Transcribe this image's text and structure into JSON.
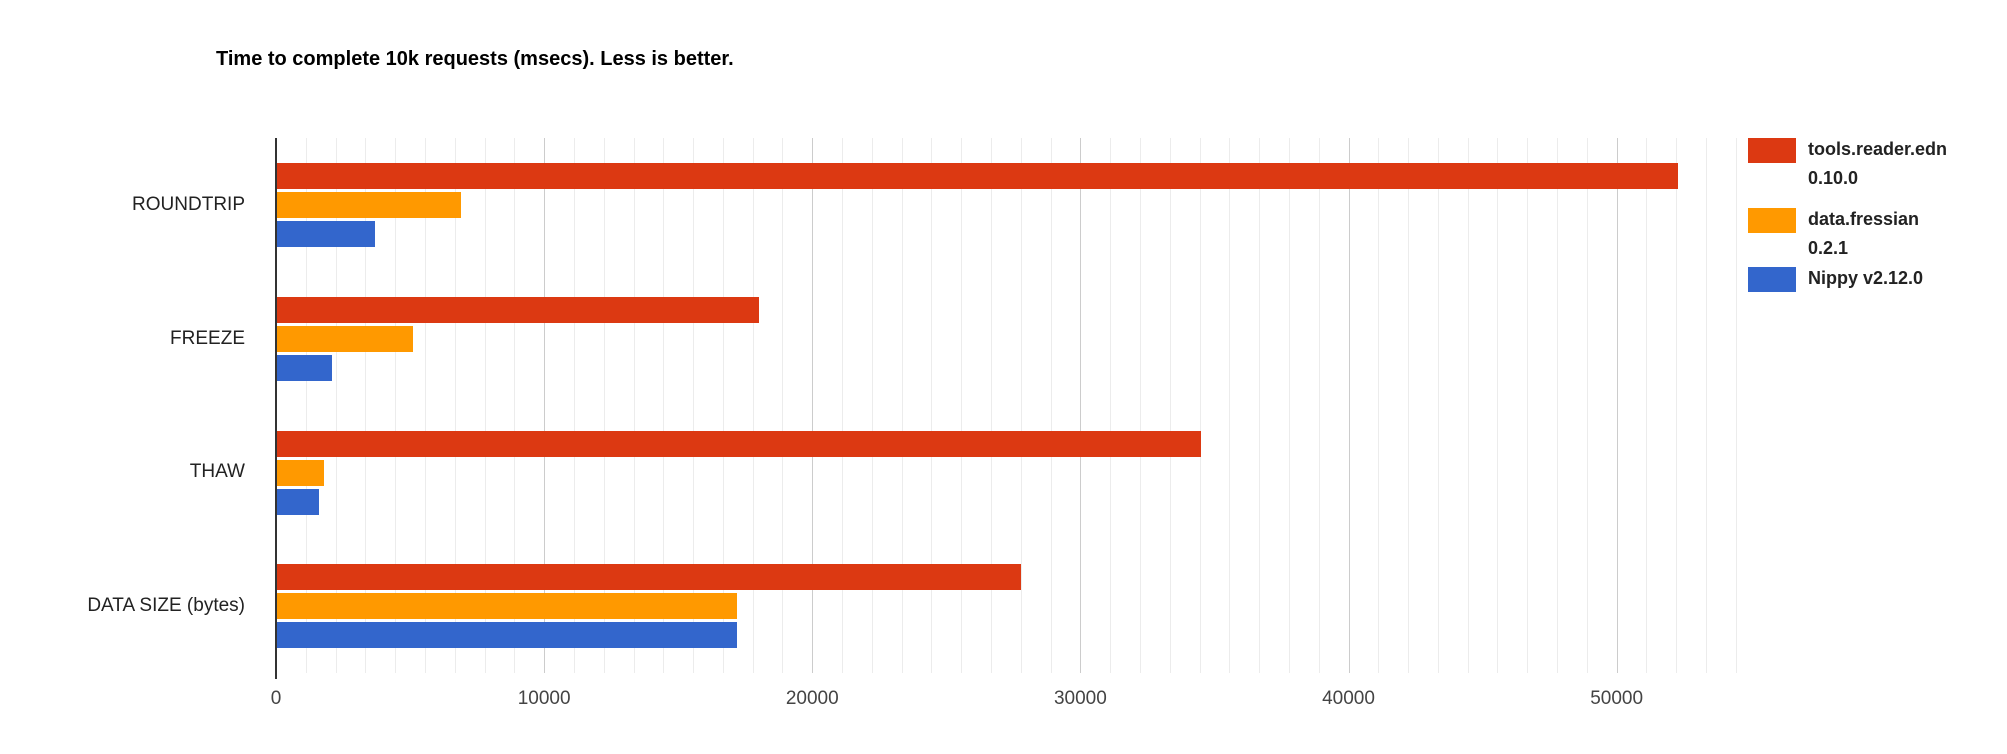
{
  "title": "Time to complete 10k requests (msecs). Less is better.",
  "chart_data": {
    "type": "bar",
    "orientation": "horizontal",
    "title": "Time to complete 10k requests (msecs). Less is better.",
    "categories": [
      "ROUNDTRIP",
      "FREEZE",
      "THAW",
      "DATA SIZE (bytes)"
    ],
    "series": [
      {
        "name": "tools.reader.edn 0.10.0",
        "legend_lines": [
          "tools.reader.edn",
          "0.10.0"
        ],
        "color": "#dc3912",
        "values": [
          52300,
          18000,
          34500,
          27800
        ]
      },
      {
        "name": "data.fressian 0.2.1",
        "legend_lines": [
          "data.fressian",
          "0.2.1"
        ],
        "color": "#ff9900",
        "values": [
          6900,
          5100,
          1800,
          17200
        ]
      },
      {
        "name": "Nippy v2.12.0",
        "legend_lines": [
          "Nippy v2.12.0"
        ],
        "color": "#3366cc",
        "values": [
          3700,
          2100,
          1600,
          17200
        ]
      }
    ],
    "x_ticks": [
      0,
      10000,
      20000,
      30000,
      40000,
      50000
    ],
    "x_tick_labels": [
      "0",
      "10000",
      "20000",
      "30000",
      "40000",
      "50000"
    ],
    "xlim": [
      0,
      54600
    ],
    "xlabel": "",
    "ylabel": "",
    "grid": {
      "vertical": true,
      "major_every": 10000,
      "minor_divisions_per_major": 9
    },
    "legend_position": "right",
    "axis_color": "#333333",
    "gridline_major_color": "#cccccc",
    "gridline_minor_color": "#ececec"
  }
}
